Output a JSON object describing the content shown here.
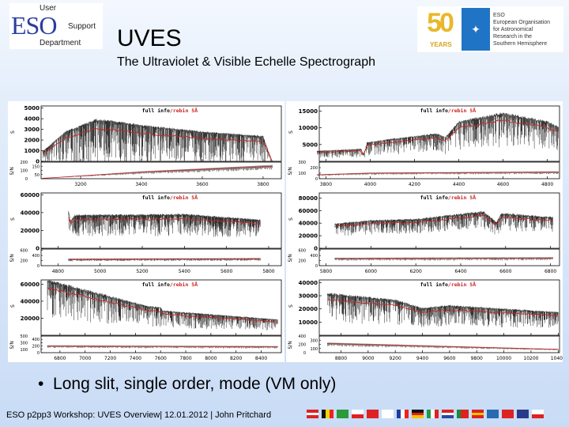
{
  "header": {
    "logo_left": {
      "text": "ESO",
      "lines": [
        "User",
        "Support",
        "Department"
      ]
    },
    "title": "UVES",
    "subtitle": "The Ultraviolet & Visible Echelle Spectrograph",
    "logo_right": {
      "anniversary": "50",
      "years": "YEARS",
      "org": "ESO",
      "lines": [
        "European Organisation",
        "for Astronomical",
        "Research in the",
        "Southern Hemisphere"
      ]
    }
  },
  "bullet": "Long slit, single order, mode (VM only)",
  "footer": "ESO p2pp3 Workshop: UVES Overview| 12.01.2012 | John Pritchard",
  "flags": [
    "Austria",
    "Belgium",
    "Brazil",
    "Czech Republic",
    "Denmark",
    "Finland",
    "France",
    "Germany",
    "Italy",
    "Netherlands",
    "Portugal",
    "Spain",
    "Sweden",
    "Switzerland",
    "United Kingdom",
    "Chile"
  ],
  "colors": {
    "full_info": "#000000",
    "rebin": "#cc2222",
    "markers": "#2233cc"
  },
  "chart_data": [
    {
      "type": "line",
      "legend": {
        "full": "full info",
        "rebin": "/rebin 5Å"
      },
      "ylabel": "S",
      "snlabel": "S/N",
      "xlim": [
        3070,
        3860
      ],
      "xticks": [
        3200,
        3400,
        3600,
        3800
      ],
      "ylim": [
        0,
        5200
      ],
      "yticks": [
        0,
        1000,
        2000,
        3000,
        4000,
        5000
      ],
      "snlim": [
        0,
        200
      ],
      "snticks": [
        0,
        50,
        100,
        150,
        200
      ],
      "data_range": [
        3075,
        3830
      ],
      "continuum": [
        [
          3075,
          900
        ],
        [
          3150,
          2700
        ],
        [
          3250,
          3800
        ],
        [
          3300,
          3700
        ],
        [
          3400,
          3300
        ],
        [
          3600,
          2700
        ],
        [
          3800,
          2300
        ],
        [
          3830,
          0
        ]
      ],
      "sn": [
        [
          3075,
          5
        ],
        [
          3400,
          80
        ],
        [
          3830,
          150
        ]
      ],
      "depth": 0.8
    },
    {
      "type": "line",
      "legend": {
        "full": "full info",
        "rebin": "/rebin 5Å"
      },
      "ylabel": "S",
      "snlabel": "S/N",
      "xlim": [
        3770,
        4855
      ],
      "xticks": [
        3800,
        4000,
        4200,
        4400,
        4600,
        4800
      ],
      "ylim": [
        0,
        16500
      ],
      "yticks": [
        5000,
        10000,
        15000
      ],
      "snlim": [
        0,
        300
      ],
      "snticks": [
        0,
        100,
        200,
        300
      ],
      "data_range": [
        3760,
        4850
      ],
      "continuum": [
        [
          3760,
          3000
        ],
        [
          3960,
          3600
        ],
        [
          3970,
          1800
        ],
        [
          3985,
          5500
        ],
        [
          4100,
          6500
        ],
        [
          4300,
          8000
        ],
        [
          4340,
          7000
        ],
        [
          4400,
          11500
        ],
        [
          4600,
          14000
        ],
        [
          4800,
          11500
        ],
        [
          4850,
          10000
        ]
      ],
      "sn": [
        [
          3760,
          70
        ],
        [
          4000,
          100
        ],
        [
          4850,
          120
        ]
      ],
      "depth": 0.5
    },
    {
      "type": "line",
      "legend": {
        "full": "full info",
        "rebin": "/rebin 5Å"
      },
      "ylabel": "S",
      "snlabel": "S/N",
      "xlim": [
        4720,
        5860
      ],
      "xticks": [
        4800,
        5000,
        5200,
        5400,
        5600,
        5800
      ],
      "ylim": [
        0,
        62000
      ],
      "yticks": [
        0,
        20000,
        40000,
        60000
      ],
      "snlim": [
        0,
        650
      ],
      "snticks": [
        0,
        200,
        400,
        600
      ],
      "data_range": [
        4850,
        5760
      ],
      "continuum": [
        [
          4850,
          40000
        ],
        [
          4860,
          30000
        ],
        [
          4880,
          36000
        ],
        [
          5400,
          37000
        ],
        [
          5760,
          31000
        ]
      ],
      "sn": [
        [
          4850,
          250
        ],
        [
          5760,
          270
        ]
      ],
      "depth": 0.45
    },
    {
      "type": "line",
      "legend": {
        "full": "full info",
        "rebin": "/rebin 5Å"
      },
      "ylabel": "S",
      "snlabel": "S/N",
      "xlim": [
        5770,
        6840
      ],
      "xticks": [
        5800,
        6000,
        6200,
        6400,
        6600,
        6800
      ],
      "ylim": [
        0,
        88000
      ],
      "yticks": [
        0,
        20000,
        40000,
        60000,
        80000
      ],
      "snlim": [
        0,
        650
      ],
      "snticks": [
        0,
        200,
        400,
        600
      ],
      "data_range": [
        5840,
        6810
      ],
      "continuum": [
        [
          5840,
          38000
        ],
        [
          6000,
          43000
        ],
        [
          6200,
          45000
        ],
        [
          6500,
          57000
        ],
        [
          6560,
          40000
        ],
        [
          6580,
          54000
        ],
        [
          6810,
          48000
        ]
      ],
      "sn": [
        [
          5840,
          280
        ],
        [
          6810,
          300
        ]
      ],
      "depth": 0.35
    },
    {
      "type": "line",
      "legend": {
        "full": "full info",
        "rebin": "/rebin 5Å"
      },
      "ylabel": "S",
      "snlabel": "S/N",
      "xlim": [
        6650,
        8560
      ],
      "xticks": [
        6800,
        7000,
        7200,
        7400,
        7600,
        7800,
        8000,
        8200,
        8400
      ],
      "ylim": [
        0,
        65000
      ],
      "yticks": [
        20000,
        40000,
        60000
      ],
      "snlim": [
        0,
        500
      ],
      "snticks": [
        0,
        100,
        200,
        300,
        400,
        500
      ],
      "data_range": [
        6700,
        8530
      ],
      "continuum": [
        [
          6700,
          63000
        ],
        [
          7500,
          33000
        ],
        [
          7600,
          32000
        ],
        [
          7620,
          28000
        ],
        [
          8530,
          18000
        ]
      ],
      "sn": [
        [
          6700,
          200
        ],
        [
          8530,
          180
        ]
      ],
      "depth": 0.5
    },
    {
      "type": "line",
      "legend": {
        "full": "full info",
        "rebin": "/rebin 5Å"
      },
      "ylabel": "S",
      "snlabel": "S/N",
      "xlim": [
        8640,
        10410
      ],
      "xticks": [
        8800,
        9000,
        9200,
        9400,
        9600,
        9800,
        10000,
        10200,
        10400
      ],
      "ylim": [
        0,
        42000
      ],
      "yticks": [
        10000,
        20000,
        30000,
        40000
      ],
      "snlim": [
        0,
        400
      ],
      "snticks": [
        0,
        100,
        200,
        300,
        400
      ],
      "data_range": [
        8700,
        10400
      ],
      "continuum": [
        [
          8700,
          31000
        ],
        [
          9200,
          26000
        ],
        [
          9400,
          20000
        ],
        [
          9600,
          22000
        ],
        [
          10400,
          17000
        ]
      ],
      "sn": [
        [
          8700,
          220
        ],
        [
          10400,
          80
        ]
      ],
      "depth": 0.5
    }
  ]
}
